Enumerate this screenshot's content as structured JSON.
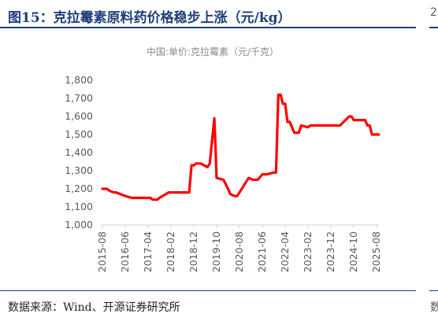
{
  "figure_title": "图15：克拉霉素原料药价格稳步上涨（元/kg）",
  "source_note": "数据来源：Wind、开源证券研究所",
  "chart_data": {
    "type": "line",
    "title": "中国:单价:克拉霉素（元/千克）",
    "xlabel": "",
    "ylabel": "",
    "ylim": [
      1000,
      1800
    ],
    "y_ticks": [
      "1,000",
      "1,100",
      "1,200",
      "1,300",
      "1,400",
      "1,500",
      "1,600",
      "1,700",
      "1,800"
    ],
    "x_ticks": [
      "2015-08",
      "2016-06",
      "2017-04",
      "2018-02",
      "2018-12",
      "2019-10",
      "2020-08",
      "2021-06",
      "2022-04",
      "2023-02",
      "2023-12",
      "2024-10",
      "2025-08"
    ],
    "grid": false,
    "legend": "none",
    "line_color": "#ff0000",
    "series": [
      {
        "x": [
          "2015-08",
          "2015-10",
          "2015-11",
          "2016-01",
          "2016-02",
          "2016-04",
          "2016-06",
          "2016-09",
          "2017-02",
          "2017-05",
          "2017-06",
          "2017-08",
          "2017-09",
          "2018-01",
          "2018-03",
          "2018-04",
          "2018-06",
          "2018-07",
          "2018-10",
          "2018-11",
          "2018-12",
          "2019-01",
          "2019-02",
          "2019-03",
          "2019-06",
          "2019-07",
          "2019-09",
          "2019-10",
          "2020-01",
          "2020-03",
          "2020-04",
          "2020-06",
          "2020-07",
          "2020-11",
          "2020-12",
          "2021-02",
          "2021-03",
          "2021-04",
          "2021-06",
          "2021-07",
          "2021-08",
          "2021-11",
          "2021-12",
          "2022-01",
          "2022-02",
          "2022-03",
          "2022-04",
          "2022-05",
          "2022-06",
          "2022-08",
          "2022-10",
          "2022-11",
          "2023-02",
          "2023-03",
          "2023-04",
          "2023-05",
          "2023-07",
          "2023-10",
          "2024-01",
          "2024-04",
          "2024-08",
          "2024-09",
          "2024-10",
          "2024-12",
          "2025-01",
          "2025-03",
          "2025-04",
          "2025-05",
          "2025-06",
          "2025-07",
          "2025-09"
        ],
        "values": [
          1200,
          1200,
          1190,
          1180,
          1180,
          1170,
          1160,
          1150,
          1150,
          1150,
          1140,
          1140,
          1150,
          1180,
          1180,
          1180,
          1180,
          1180,
          1180,
          1330,
          1330,
          1340,
          1340,
          1340,
          1320,
          1340,
          1590,
          1260,
          1250,
          1200,
          1170,
          1160,
          1160,
          1240,
          1260,
          1250,
          1250,
          1250,
          1280,
          1280,
          1280,
          1290,
          1290,
          1720,
          1720,
          1670,
          1670,
          1570,
          1570,
          1510,
          1510,
          1550,
          1540,
          1550,
          1550,
          1550,
          1550,
          1550,
          1550,
          1550,
          1600,
          1600,
          1580,
          1580,
          1580,
          1580,
          1550,
          1550,
          1500,
          1500,
          1500
        ]
      }
    ]
  }
}
